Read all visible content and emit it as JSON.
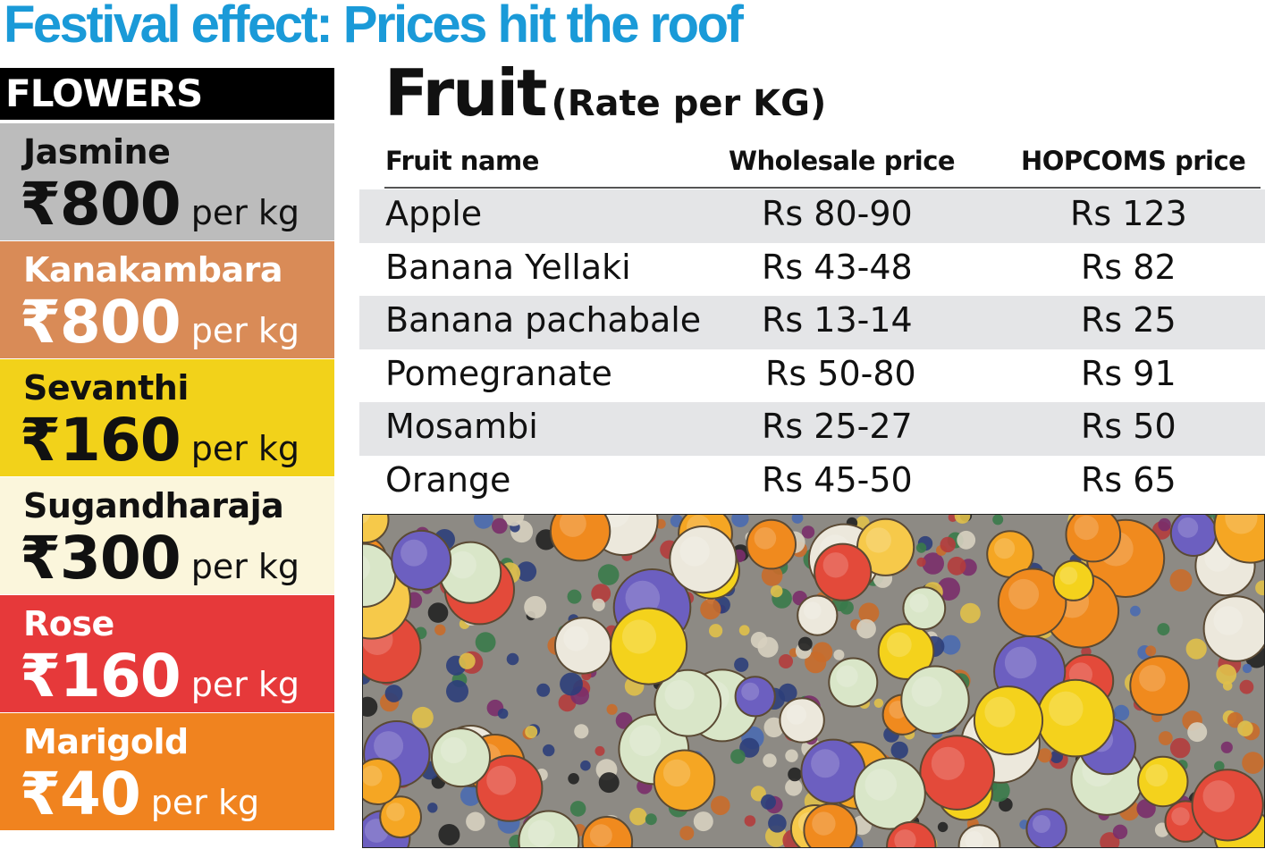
{
  "headline": "Festival effect: Prices hit the roof",
  "flowers": {
    "heading": "FLOWERS",
    "items": [
      {
        "name": "Jasmine",
        "price": "₹800",
        "unit": "per kg",
        "color": "#bcbcbc",
        "tone": "dark"
      },
      {
        "name": "Kanakambara",
        "price": "₹800",
        "unit": "per kg",
        "color": "#d98b57",
        "tone": "light"
      },
      {
        "name": "Sevanthi",
        "price": "₹160",
        "unit": "per kg",
        "color": "#f2d21a",
        "tone": "dark"
      },
      {
        "name": "Sugandharaja",
        "price": "₹300",
        "unit": "per kg",
        "color": "#fbf6dc",
        "tone": "dark"
      },
      {
        "name": "Rose",
        "price": "₹160",
        "unit": "per kg",
        "color": "#e6393a",
        "tone": "light"
      },
      {
        "name": "Marigold",
        "price": "₹40",
        "unit": "per kg",
        "color": "#f0831f",
        "tone": "light"
      }
    ]
  },
  "fruit": {
    "title": "Fruit",
    "subtitle": "(Rate per KG)",
    "columns": [
      "Fruit name",
      "Wholesale price",
      "HOPCOMS price"
    ],
    "rows": [
      [
        "Apple",
        "Rs 80-90",
        "Rs 123"
      ],
      [
        "Banana Yellaki",
        "Rs 43-48",
        "Rs 82"
      ],
      [
        "Banana pachabale",
        "Rs 13-14",
        "Rs 25"
      ],
      [
        "Pomegranate",
        "Rs 50-80",
        "Rs 91"
      ],
      [
        "Mosambi",
        "Rs 25-27",
        "Rs 50"
      ],
      [
        "Orange",
        "Rs 45-50",
        "Rs 65"
      ]
    ]
  },
  "photo": {
    "basket_colors": [
      "#f4d21c",
      "#f08a1e",
      "#ece8dc",
      "#6c5fc0",
      "#e34a3a",
      "#f6c94a",
      "#d9e6c8",
      "#f5a623"
    ]
  }
}
